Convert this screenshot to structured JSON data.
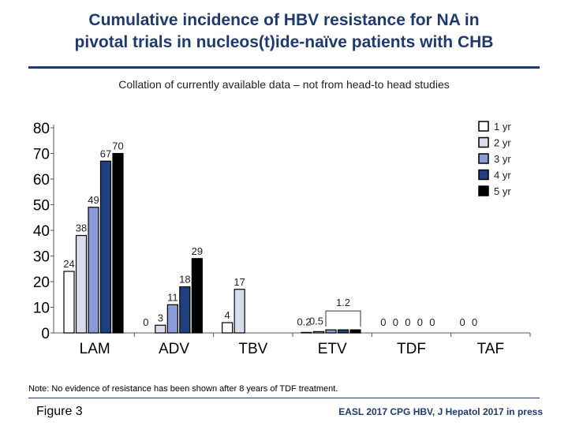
{
  "title_line1": "Cumulative incidence of HBV resistance for NA in",
  "title_line2": "pivotal trials in nucleos(t)ide-naïve patients with CHB",
  "subtitle": "Collation of currently available data – not from head-to head studies",
  "note": "Note: No evidence of resistance has been shown after 8 years of TDF treatment.",
  "figure_label": "Figure 3",
  "citation": "EASL 2017 CPG HBV, J Hepatol 2017 in press",
  "chart_data": {
    "type": "bar",
    "title": "",
    "xlabel": "",
    "ylabel": "",
    "ylim": [
      0,
      80
    ],
    "yticks": [
      0,
      10,
      20,
      30,
      40,
      50,
      60,
      70,
      80
    ],
    "categories": [
      "LAM",
      "ADV",
      "TBV",
      "ETV",
      "TDF",
      "TAF"
    ],
    "legend_position": "top-right",
    "colors": [
      "#ffffff",
      "#d8dcec",
      "#8a9bd6",
      "#1f3f7f",
      "#000000"
    ],
    "series": [
      {
        "name": "1 yr",
        "values": [
          24,
          0,
          4,
          0.2,
          0,
          0
        ],
        "labels": [
          "24",
          "0",
          "4",
          "0.2",
          "0",
          "0"
        ]
      },
      {
        "name": "2 yr",
        "values": [
          38,
          3,
          17,
          0.5,
          0,
          0
        ],
        "labels": [
          "38",
          "3",
          "17",
          "0.5",
          "0",
          "0"
        ]
      },
      {
        "name": "3 yr",
        "values": [
          49,
          11,
          null,
          1.2,
          0,
          null
        ],
        "labels": [
          "49",
          "11",
          "",
          "",
          "0",
          ""
        ]
      },
      {
        "name": "4 yr",
        "values": [
          67,
          18,
          null,
          1.2,
          0,
          null
        ],
        "labels": [
          "67",
          "18",
          "",
          "",
          "0",
          ""
        ]
      },
      {
        "name": "5 yr",
        "values": [
          70,
          29,
          null,
          1.2,
          0,
          null
        ],
        "labels": [
          "70",
          "29",
          "",
          "",
          "0",
          ""
        ]
      }
    ],
    "annotations": [
      {
        "text": "1.2",
        "category": "ETV",
        "series": [
          "3 yr",
          "4 yr",
          "5 yr"
        ]
      }
    ]
  }
}
